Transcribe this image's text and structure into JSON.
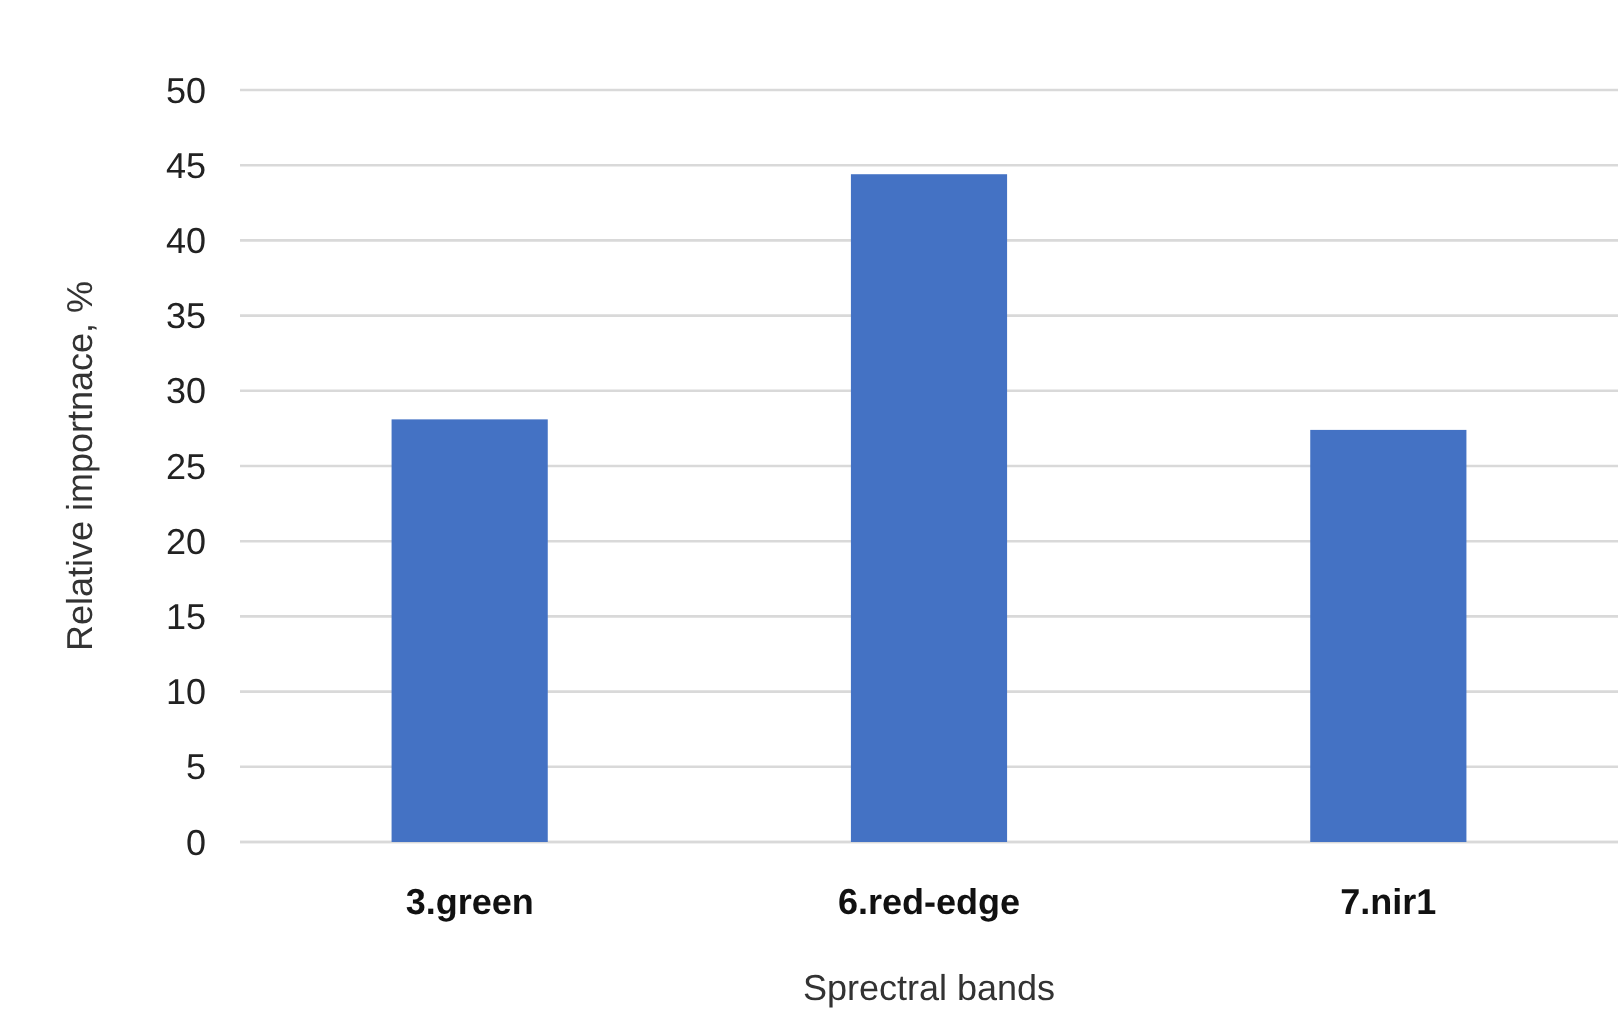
{
  "chart_data": {
    "type": "bar",
    "xlabel": "Sprectral bands",
    "ylabel": "Relative importnace, %",
    "categories": [
      "3.green",
      "6.red-edge",
      "7.nir1"
    ],
    "values": [
      28.1,
      44.4,
      27.4
    ],
    "color": "#4472c4",
    "ylim": [
      0,
      50
    ],
    "yticks": [
      0,
      5,
      10,
      15,
      20,
      25,
      30,
      35,
      40,
      45,
      50
    ],
    "grid": "y"
  }
}
